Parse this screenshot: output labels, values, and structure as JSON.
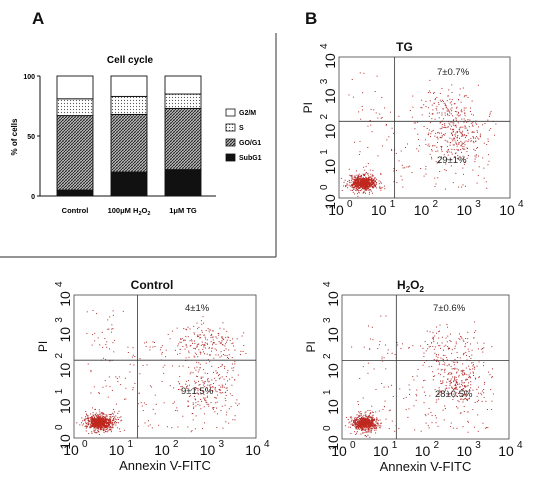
{
  "panels": {
    "a_label": "A",
    "b_label": "B"
  },
  "chart_data": [
    {
      "id": "cell-cycle",
      "type": "bar",
      "stacked": true,
      "title": "Cell cycle",
      "ylabel": "% of cells",
      "ylim": [
        0,
        100
      ],
      "yticks": [
        "0",
        "50",
        "100"
      ],
      "categories": [
        "Control",
        "100μM H2O2",
        "1μM TG"
      ],
      "category_labels": [
        {
          "text": "Control",
          "sub": ""
        },
        {
          "pre": "100μM H",
          "sub1": "2",
          "mid": "O",
          "sub2": "2"
        },
        {
          "text": "1μM TG"
        }
      ],
      "series": [
        {
          "name": "SubG1",
          "values": [
            5,
            20,
            22
          ]
        },
        {
          "name": "GO/G1",
          "values": [
            62,
            48,
            51
          ]
        },
        {
          "name": "S",
          "values": [
            14,
            15,
            12
          ]
        },
        {
          "name": "G2/M",
          "values": [
            19,
            17,
            15
          ]
        }
      ],
      "legend_order": [
        "G2/M",
        "S",
        "GO/G1",
        "SubG1"
      ],
      "legend": "right",
      "grid": false
    },
    {
      "id": "tg",
      "type": "scatter",
      "title": "TG",
      "ylabel": "PI",
      "xlabel": "",
      "log_axes": true,
      "xlim": [
        1,
        10000
      ],
      "ylim": [
        1,
        10000
      ],
      "tick_bases": [
        "10",
        "10",
        "10",
        "10",
        "10"
      ],
      "tick_exps": [
        "0",
        "1",
        "2",
        "3",
        "4"
      ],
      "gate_x": 20,
      "gate_y": 150,
      "annotations": [
        "7±0.7%",
        "29±1%"
      ]
    },
    {
      "id": "control",
      "type": "scatter",
      "title": "Control",
      "ylabel": "PI",
      "xlabel": "Annexin V-FITC",
      "log_axes": true,
      "xlim": [
        1,
        10000
      ],
      "ylim": [
        1,
        10000
      ],
      "tick_bases": [
        "10",
        "10",
        "10",
        "10",
        "10"
      ],
      "tick_exps": [
        "0",
        "1",
        "2",
        "3",
        "4"
      ],
      "gate_x": 25,
      "gate_y": 150,
      "annotations": [
        "4±1%",
        "9±1.5%"
      ]
    },
    {
      "id": "h2o2",
      "type": "scatter",
      "title_parts": {
        "base": "H",
        "sub1": "2",
        "mid": "O",
        "sub2": "2"
      },
      "ylabel": "PI",
      "xlabel": "Annexin V-FITC",
      "log_axes": true,
      "xlim": [
        1,
        10000
      ],
      "ylim": [
        1,
        10000
      ],
      "tick_bases": [
        "10",
        "10",
        "10",
        "10",
        "10"
      ],
      "tick_exps": [
        "0",
        "1",
        "2",
        "3",
        "4"
      ],
      "gate_x": 20,
      "gate_y": 150,
      "annotations": [
        "7±0.6%",
        "28±0.5%"
      ]
    }
  ],
  "colors": {
    "dots": "#b22a2a",
    "dense": "#c0281e",
    "frame": "#444444"
  }
}
